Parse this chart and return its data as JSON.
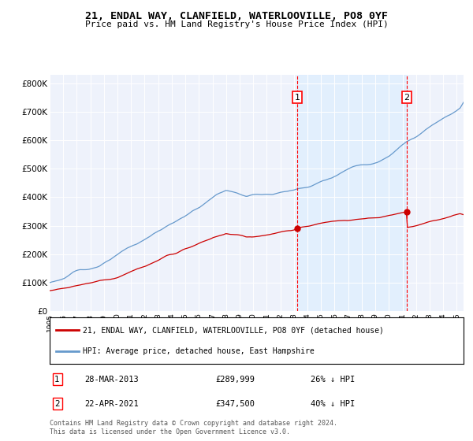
{
  "title": "21, ENDAL WAY, CLANFIELD, WATERLOOVILLE, PO8 0YF",
  "subtitle": "Price paid vs. HM Land Registry's House Price Index (HPI)",
  "ylabel_ticks": [
    "£0",
    "£100K",
    "£200K",
    "£300K",
    "£400K",
    "£500K",
    "£600K",
    "£700K",
    "£800K"
  ],
  "ytick_values": [
    0,
    100000,
    200000,
    300000,
    400000,
    500000,
    600000,
    700000,
    800000
  ],
  "ylim": [
    0,
    830000
  ],
  "xlim_start": 1995.0,
  "xlim_end": 2025.5,
  "hpi_color": "#6699cc",
  "price_color": "#cc0000",
  "shade_color": "#ddeeff",
  "marker1_x": 2013.24,
  "marker1_label": "1",
  "marker2_x": 2021.31,
  "marker2_label": "2",
  "marker1_price": 289999,
  "marker2_price": 347500,
  "legend_line1": "21, ENDAL WAY, CLANFIELD, WATERLOOVILLE, PO8 0YF (detached house)",
  "legend_line2": "HPI: Average price, detached house, East Hampshire",
  "note1_num": "1",
  "note1_date": "28-MAR-2013",
  "note1_price": "£289,999",
  "note1_pct": "26% ↓ HPI",
  "note2_num": "2",
  "note2_date": "22-APR-2021",
  "note2_price": "£347,500",
  "note2_pct": "40% ↓ HPI",
  "footer": "Contains HM Land Registry data © Crown copyright and database right 2024.\nThis data is licensed under the Open Government Licence v3.0.",
  "background_color": "#eef2fb",
  "plot_bg_color": "#eef2fb"
}
